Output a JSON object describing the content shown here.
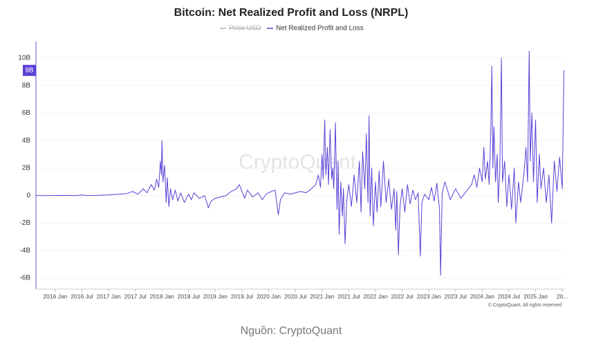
{
  "chart_data": {
    "type": "line",
    "title": "Bitcoin: Net Realized Profit and Loss (NRPL)",
    "hidden_series": {
      "name": "Price USD",
      "color": "#b0b0b0"
    },
    "watermark": "CryptoQuant",
    "credit": "© CryptoQuant. All rights reserved",
    "caption": "Nguồn: CryptoQuant",
    "last_value_label": {
      "value": 9.1,
      "label": "9B"
    },
    "x": [
      2015.64,
      2015.8,
      2016.0,
      2016.2,
      2016.4,
      2016.5,
      2016.6,
      2016.8,
      2017.0,
      2017.2,
      2017.35,
      2017.45,
      2017.55,
      2017.65,
      2017.72,
      2017.8,
      2017.86,
      2017.9,
      2017.94,
      2017.97,
      2017.99,
      2018.0,
      2018.02,
      2018.05,
      2018.08,
      2018.1,
      2018.13,
      2018.16,
      2018.2,
      2018.25,
      2018.3,
      2018.35,
      2018.42,
      2018.5,
      2018.55,
      2018.6,
      2018.7,
      2018.8,
      2018.87,
      2018.92,
      2019.0,
      2019.1,
      2019.2,
      2019.3,
      2019.4,
      2019.45,
      2019.5,
      2019.55,
      2019.6,
      2019.7,
      2019.8,
      2019.88,
      2019.95,
      2020.05,
      2020.12,
      2020.18,
      2020.22,
      2020.3,
      2020.4,
      2020.5,
      2020.6,
      2020.7,
      2020.8,
      2020.88,
      2020.93,
      2020.97,
      2021.0,
      2021.02,
      2021.05,
      2021.07,
      2021.1,
      2021.12,
      2021.15,
      2021.18,
      2021.2,
      2021.22,
      2021.25,
      2021.28,
      2021.3,
      2021.32,
      2021.35,
      2021.38,
      2021.4,
      2021.43,
      2021.46,
      2021.5,
      2021.55,
      2021.6,
      2021.65,
      2021.7,
      2021.73,
      2021.76,
      2021.8,
      2021.83,
      2021.86,
      2021.88,
      2021.9,
      2021.93,
      2021.96,
      2022.0,
      2022.03,
      2022.07,
      2022.1,
      2022.15,
      2022.2,
      2022.25,
      2022.3,
      2022.35,
      2022.38,
      2022.4,
      2022.43,
      2022.46,
      2022.5,
      2022.55,
      2022.6,
      2022.65,
      2022.7,
      2022.75,
      2022.8,
      2022.84,
      2022.87,
      2022.92,
      2023.0,
      2023.05,
      2023.1,
      2023.15,
      2023.2,
      2023.22,
      2023.25,
      2023.3,
      2023.35,
      2023.4,
      2023.5,
      2023.6,
      2023.7,
      2023.8,
      2023.85,
      2023.9,
      2023.95,
      2024.0,
      2024.03,
      2024.06,
      2024.1,
      2024.13,
      2024.16,
      2024.18,
      2024.2,
      2024.22,
      2024.25,
      2024.28,
      2024.3,
      2024.33,
      2024.36,
      2024.38,
      2024.42,
      2024.46,
      2024.5,
      2024.55,
      2024.6,
      2024.63,
      2024.68,
      2024.72,
      2024.78,
      2024.82,
      2024.85,
      2024.88,
      2024.9,
      2024.93,
      2024.96,
      2025.0,
      2025.03,
      2025.07,
      2025.1,
      2025.15,
      2025.2,
      2025.25,
      2025.3,
      2025.35,
      2025.4,
      2025.45,
      2025.5,
      2025.53
    ],
    "series": [
      {
        "name": "Net Realized Profit and Loss",
        "color": "#5b3fd6",
        "values": [
          0,
          0,
          0.01,
          0.02,
          0,
          0.05,
          0.01,
          0.02,
          0.05,
          0.1,
          0.15,
          0.3,
          0.1,
          0.5,
          0.2,
          0.8,
          0.4,
          1.2,
          0.6,
          2.5,
          1.5,
          4,
          1,
          2.2,
          -0.5,
          1.3,
          -0.8,
          0.5,
          -0.3,
          0.4,
          -0.4,
          0.2,
          -0.5,
          0.1,
          -0.3,
          0.2,
          -0.2,
          0,
          -0.9,
          -0.4,
          -0.2,
          -0.1,
          0,
          0.3,
          0.5,
          0.8,
          0.3,
          -0.2,
          0.4,
          -0.1,
          0.2,
          -0.3,
          0.1,
          0.3,
          0.4,
          -1.4,
          -0.3,
          0.2,
          0.1,
          0.2,
          0.3,
          0.2,
          0.5,
          0.8,
          1.5,
          0.6,
          3,
          1.2,
          5.5,
          1.5,
          3.5,
          0.8,
          4.8,
          1.2,
          2,
          0.5,
          5.3,
          -1,
          2.5,
          -2.8,
          1,
          -1.5,
          0.5,
          -3.5,
          -0.5,
          0.8,
          -0.8,
          1.5,
          -0.5,
          2.5,
          -1.2,
          3.2,
          0.5,
          4.5,
          -0.5,
          5.8,
          -1.5,
          2,
          -2.2,
          1,
          -1.2,
          1.8,
          -0.8,
          2.5,
          -0.5,
          1.2,
          -1,
          0.5,
          -2.5,
          0.3,
          -4.3,
          -0.8,
          0.5,
          -1.2,
          0.8,
          -0.6,
          0.4,
          -0.3,
          0.2,
          -4.4,
          -0.5,
          0.1,
          -0.3,
          0.6,
          -0.4,
          0.9,
          -1,
          -5.8,
          0.2,
          1,
          0.4,
          -0.3,
          0.5,
          -0.2,
          0.3,
          0.8,
          1.5,
          0.6,
          2,
          1,
          3.5,
          1.2,
          2.5,
          0.8,
          4.5,
          9.4,
          2,
          5,
          1,
          3,
          -0.5,
          2,
          10,
          1,
          2.5,
          -0.8,
          1.5,
          -1,
          2,
          -2,
          1,
          -0.5,
          1.5,
          3.5,
          1,
          10.5,
          2.5,
          6,
          1,
          5.5,
          -0.5,
          3,
          0.5,
          2,
          -0.5,
          1.5,
          -2,
          2.5,
          0.3,
          2.8,
          0.5,
          9.1
        ]
      }
    ],
    "xlim": [
      2015.64,
      2025.55
    ],
    "xticks": [
      {
        "value": 2016,
        "label": "2016 Jan"
      },
      {
        "value": 2016.5,
        "label": "2016 Jul"
      },
      {
        "value": 2017,
        "label": "2017 Jan"
      },
      {
        "value": 2017.5,
        "label": "2017 Jul"
      },
      {
        "value": 2018,
        "label": "2018 Jan"
      },
      {
        "value": 2018.5,
        "label": "2018 Jul"
      },
      {
        "value": 2019,
        "label": "2019 Jan"
      },
      {
        "value": 2019.5,
        "label": "2019 Jul"
      },
      {
        "value": 2020,
        "label": "2020 Jan"
      },
      {
        "value": 2020.5,
        "label": "2020 Jul"
      },
      {
        "value": 2021,
        "label": "2021 Jan"
      },
      {
        "value": 2021.5,
        "label": "2021 Jul"
      },
      {
        "value": 2022,
        "label": "2022 Jan"
      },
      {
        "value": 2022.5,
        "label": "2022 Jul"
      },
      {
        "value": 2023,
        "label": "2023 Jan"
      },
      {
        "value": 2023.5,
        "label": "2023 Jul"
      },
      {
        "value": 2024,
        "label": "2024 Jan"
      },
      {
        "value": 2024.5,
        "label": "2024 Jul"
      },
      {
        "value": 2025,
        "label": "2025 Jan"
      },
      {
        "value": 2025.5,
        "label": "20..."
      }
    ],
    "ylim": [
      -6.8,
      11.2
    ],
    "yticks": [
      {
        "value": -6,
        "label": "-6B"
      },
      {
        "value": -4,
        "label": "-4B"
      },
      {
        "value": -2,
        "label": "-2B"
      },
      0,
      {
        "value": 2,
        "label": "2B"
      },
      {
        "value": 4,
        "label": "4B"
      },
      {
        "value": 6,
        "label": "6B"
      },
      {
        "value": 8,
        "label": "8B"
      },
      {
        "value": 10,
        "label": "10B"
      }
    ],
    "grid": true
  }
}
